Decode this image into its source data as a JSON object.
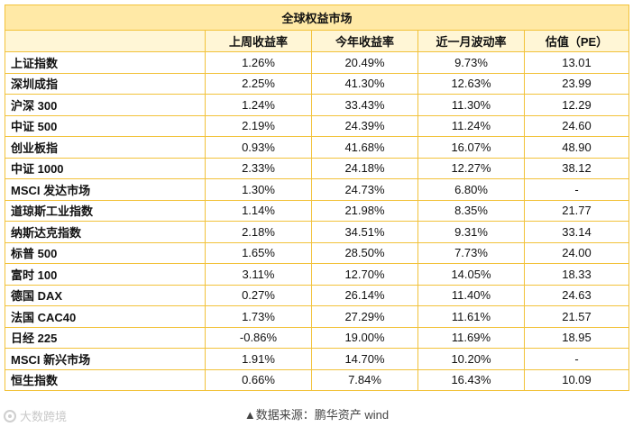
{
  "table": {
    "title": "全球权益市场",
    "headers": [
      "",
      "上周收益率",
      "今年收益率",
      "近一月波动率",
      "估值（PE）"
    ],
    "rows": [
      [
        "上证指数",
        "1.26%",
        "20.49%",
        "9.73%",
        "13.01"
      ],
      [
        "深圳成指",
        "2.25%",
        "41.30%",
        "12.63%",
        "23.99"
      ],
      [
        "沪深 300",
        "1.24%",
        "33.43%",
        "11.30%",
        "12.29"
      ],
      [
        "中证 500",
        "2.19%",
        "24.39%",
        "11.24%",
        "24.60"
      ],
      [
        "创业板指",
        "0.93%",
        "41.68%",
        "16.07%",
        "48.90"
      ],
      [
        "中证 1000",
        "2.33%",
        "24.18%",
        "12.27%",
        "38.12"
      ],
      [
        "MSCI 发达市场",
        "1.30%",
        "24.73%",
        "6.80%",
        "-"
      ],
      [
        "道琼斯工业指数",
        "1.14%",
        "21.98%",
        "8.35%",
        "21.77"
      ],
      [
        "纳斯达克指数",
        "2.18%",
        "34.51%",
        "9.31%",
        "33.14"
      ],
      [
        "标普 500",
        "1.65%",
        "28.50%",
        "7.73%",
        "24.00"
      ],
      [
        "富时 100",
        "3.11%",
        "12.70%",
        "14.05%",
        "18.33"
      ],
      [
        "德国 DAX",
        "0.27%",
        "26.14%",
        "11.40%",
        "24.63"
      ],
      [
        "法国 CAC40",
        "1.73%",
        "27.29%",
        "11.61%",
        "21.57"
      ],
      [
        "日经 225",
        "-0.86%",
        "19.00%",
        "11.69%",
        "18.95"
      ],
      [
        "MSCI 新兴市场",
        "1.91%",
        "14.70%",
        "10.20%",
        "-"
      ],
      [
        "恒生指数",
        "0.66%",
        "7.84%",
        "16.43%",
        "10.09"
      ]
    ]
  },
  "footer": {
    "source": "▲数据来源：鹏华资产 wind"
  },
  "watermark": {
    "text": "大数跨境",
    "icon": "watermark-logo-icon"
  }
}
